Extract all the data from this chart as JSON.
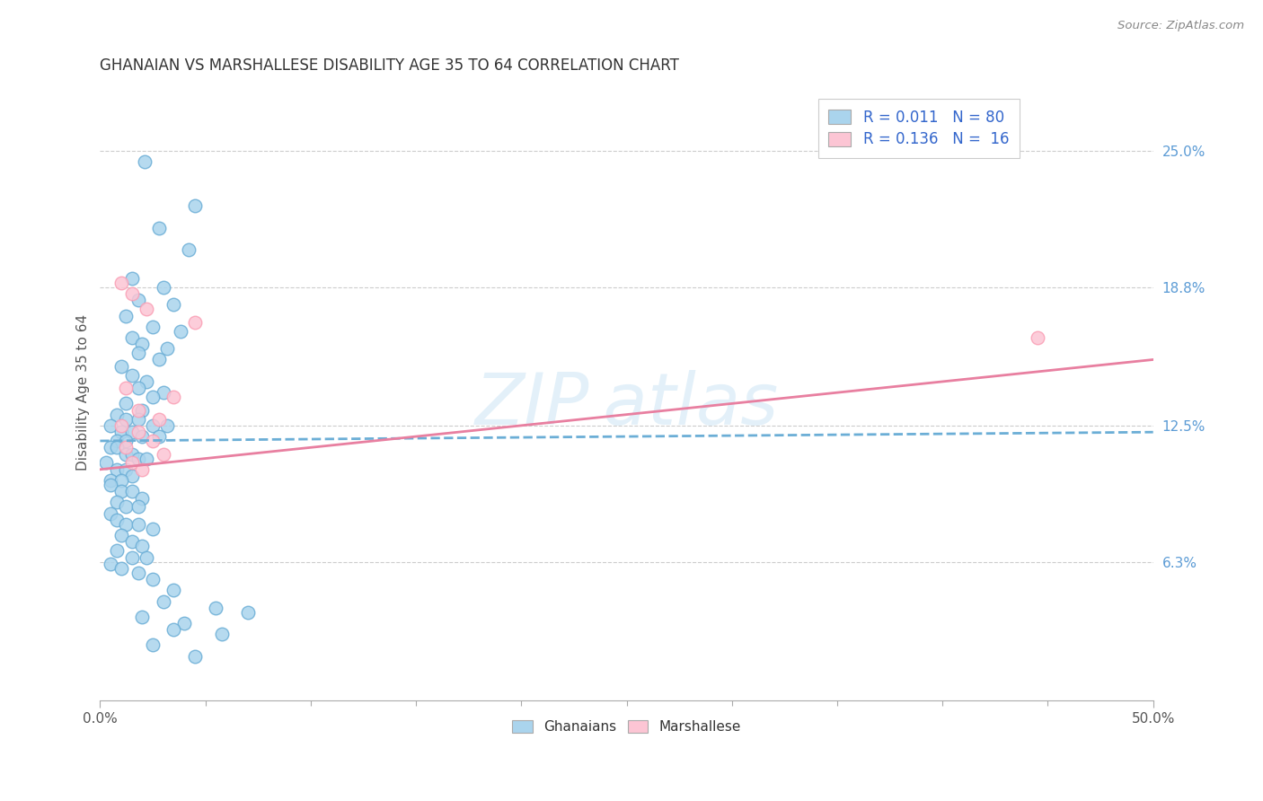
{
  "title": "GHANAIAN VS MARSHALLESE DISABILITY AGE 35 TO 64 CORRELATION CHART",
  "source_text": "Source: ZipAtlas.com",
  "ylabel": "Disability Age 35 to 64",
  "ytick_labels": [
    "6.3%",
    "12.5%",
    "18.8%",
    "25.0%"
  ],
  "ytick_values": [
    6.3,
    12.5,
    18.8,
    25.0
  ],
  "xlim": [
    0.0,
    50.0
  ],
  "ylim": [
    0.0,
    28.0
  ],
  "ghanaian_color": "#6baed6",
  "ghanaian_color_fill": "#aad4ed",
  "marshallese_color": "#fa9fb5",
  "marshallese_color_fill": "#fcc5d4",
  "trendline_ghanaian_color": "#6baed6",
  "trendline_marshallese_color": "#e87fa0",
  "ghanaian_x": [
    2.1,
    4.5,
    2.8,
    4.2,
    1.5,
    3.0,
    1.8,
    3.5,
    1.2,
    2.5,
    3.8,
    1.5,
    2.0,
    3.2,
    1.8,
    2.8,
    1.0,
    1.5,
    2.2,
    1.8,
    3.0,
    2.5,
    1.2,
    2.0,
    0.8,
    1.2,
    1.8,
    2.5,
    3.2,
    0.5,
    1.0,
    1.5,
    2.0,
    2.8,
    0.8,
    1.2,
    0.5,
    0.8,
    1.2,
    1.5,
    1.8,
    2.2,
    0.3,
    0.8,
    1.2,
    1.5,
    0.5,
    1.0,
    0.5,
    1.0,
    1.5,
    2.0,
    0.8,
    1.2,
    1.8,
    0.5,
    0.8,
    1.2,
    1.8,
    2.5,
    1.0,
    1.5,
    2.0,
    0.8,
    1.5,
    2.2,
    0.5,
    1.0,
    1.8,
    2.5,
    3.5,
    3.0,
    5.5,
    7.0,
    2.0,
    4.0,
    3.5,
    5.8,
    2.5,
    4.5
  ],
  "ghanaian_y": [
    24.5,
    22.5,
    21.5,
    20.5,
    19.2,
    18.8,
    18.2,
    18.0,
    17.5,
    17.0,
    16.8,
    16.5,
    16.2,
    16.0,
    15.8,
    15.5,
    15.2,
    14.8,
    14.5,
    14.2,
    14.0,
    13.8,
    13.5,
    13.2,
    13.0,
    12.8,
    12.8,
    12.5,
    12.5,
    12.5,
    12.2,
    12.2,
    12.0,
    12.0,
    11.8,
    11.8,
    11.5,
    11.5,
    11.2,
    11.2,
    11.0,
    11.0,
    10.8,
    10.5,
    10.5,
    10.2,
    10.0,
    10.0,
    9.8,
    9.5,
    9.5,
    9.2,
    9.0,
    8.8,
    8.8,
    8.5,
    8.2,
    8.0,
    8.0,
    7.8,
    7.5,
    7.2,
    7.0,
    6.8,
    6.5,
    6.5,
    6.2,
    6.0,
    5.8,
    5.5,
    5.0,
    4.5,
    4.2,
    4.0,
    3.8,
    3.5,
    3.2,
    3.0,
    2.5,
    2.0
  ],
  "marshallese_x": [
    1.0,
    1.5,
    2.2,
    4.5,
    1.2,
    3.5,
    1.8,
    2.8,
    1.0,
    1.8,
    2.5,
    1.2,
    3.0,
    1.5,
    2.0,
    44.5
  ],
  "marshallese_y": [
    19.0,
    18.5,
    17.8,
    17.2,
    14.2,
    13.8,
    13.2,
    12.8,
    12.5,
    12.2,
    11.8,
    11.5,
    11.2,
    10.8,
    10.5,
    16.5
  ],
  "trendline_g_x0": 0.0,
  "trendline_g_x1": 50.0,
  "trendline_g_y0": 11.8,
  "trendline_g_y1": 12.2,
  "trendline_m_x0": 0.0,
  "trendline_m_x1": 50.0,
  "trendline_m_y0": 10.5,
  "trendline_m_y1": 15.5
}
